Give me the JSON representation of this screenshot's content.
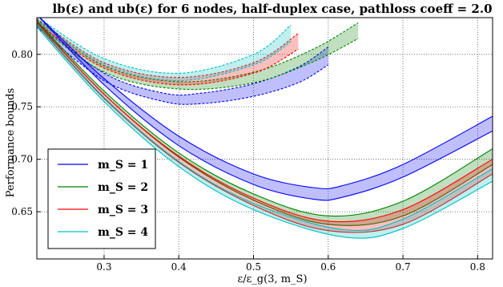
{
  "chart_data": {
    "type": "line",
    "title": "lb(ε) and ub(ε) for 6 nodes, half-duplex case, pathloss coeff = 2.0",
    "xlabel": "ε/ε_g(3, m_S)",
    "ylabel": "Performance bounds",
    "xlim": [
      0.21,
      0.82
    ],
    "ylim": [
      0.605,
      0.835
    ],
    "xticks": [
      "0.3",
      "0.4",
      "0.5",
      "0.6",
      "0.7",
      "0.8"
    ],
    "yticks": [
      "0.65",
      "0.70",
      "0.75",
      "0.80"
    ],
    "grid": true,
    "legend_placement": "lower-left",
    "series": [
      {
        "name": "m_S = 1",
        "color": "#0000ff",
        "lower": {
          "x": [
            0.21,
            0.3,
            0.4,
            0.5,
            0.58,
            0.62,
            0.7,
            0.82
          ],
          "y": [
            0.838,
            0.771,
            0.713,
            0.676,
            0.662,
            0.664,
            0.683,
            0.727
          ]
        },
        "upper": {
          "x": [
            0.21,
            0.3,
            0.4,
            0.5,
            0.58,
            0.62,
            0.7,
            0.82
          ],
          "y": [
            0.838,
            0.777,
            0.722,
            0.686,
            0.673,
            0.675,
            0.695,
            0.741
          ]
        },
        "dashed_lower": {
          "x": [
            0.21,
            0.3,
            0.38,
            0.43,
            0.5,
            0.56,
            0.6
          ],
          "y": [
            0.826,
            0.775,
            0.755,
            0.753,
            0.76,
            0.773,
            0.79
          ]
        },
        "dashed_upper": {
          "x": [
            0.21,
            0.3,
            0.38,
            0.43,
            0.5,
            0.56,
            0.6
          ],
          "y": [
            0.831,
            0.782,
            0.763,
            0.763,
            0.772,
            0.788,
            0.807
          ]
        }
      },
      {
        "name": "m_S = 2",
        "color": "#008000",
        "lower": {
          "x": [
            0.21,
            0.3,
            0.4,
            0.5,
            0.6,
            0.7,
            0.82
          ],
          "y": [
            0.83,
            0.762,
            0.702,
            0.661,
            0.638,
            0.646,
            0.695
          ]
        },
        "upper": {
          "x": [
            0.21,
            0.3,
            0.4,
            0.5,
            0.6,
            0.7,
            0.82
          ],
          "y": [
            0.832,
            0.765,
            0.706,
            0.667,
            0.646,
            0.66,
            0.71
          ]
        },
        "dashed_lower": {
          "x": [
            0.21,
            0.3,
            0.4,
            0.5,
            0.58,
            0.64
          ],
          "y": [
            0.829,
            0.783,
            0.767,
            0.773,
            0.793,
            0.815
          ]
        },
        "dashed_upper": {
          "x": [
            0.21,
            0.3,
            0.4,
            0.5,
            0.58,
            0.64
          ],
          "y": [
            0.833,
            0.789,
            0.774,
            0.783,
            0.805,
            0.83
          ]
        }
      },
      {
        "name": "m_S = 3",
        "color": "#ff0000",
        "lower": {
          "x": [
            0.21,
            0.3,
            0.4,
            0.5,
            0.6,
            0.7,
            0.82
          ],
          "y": [
            0.828,
            0.758,
            0.697,
            0.656,
            0.632,
            0.638,
            0.686
          ]
        },
        "upper": {
          "x": [
            0.21,
            0.3,
            0.4,
            0.5,
            0.6,
            0.7,
            0.82
          ],
          "y": [
            0.831,
            0.762,
            0.703,
            0.663,
            0.641,
            0.652,
            0.7
          ]
        },
        "dashed_lower": {
          "x": [
            0.21,
            0.3,
            0.4,
            0.5,
            0.56
          ],
          "y": [
            0.83,
            0.787,
            0.771,
            0.782,
            0.805
          ]
        },
        "dashed_upper": {
          "x": [
            0.21,
            0.3,
            0.4,
            0.5,
            0.56
          ],
          "y": [
            0.834,
            0.792,
            0.778,
            0.792,
            0.82
          ]
        }
      },
      {
        "name": "m_S = 4",
        "color": "#00bfbf",
        "lower": {
          "x": [
            0.21,
            0.3,
            0.4,
            0.5,
            0.62,
            0.7,
            0.82
          ],
          "y": [
            0.826,
            0.755,
            0.693,
            0.652,
            0.626,
            0.634,
            0.679
          ]
        },
        "upper": {
          "x": [
            0.21,
            0.3,
            0.4,
            0.5,
            0.62,
            0.7,
            0.82
          ],
          "y": [
            0.829,
            0.759,
            0.698,
            0.658,
            0.633,
            0.643,
            0.691
          ]
        },
        "dashed_lower": {
          "x": [
            0.21,
            0.3,
            0.4,
            0.5,
            0.55
          ],
          "y": [
            0.832,
            0.79,
            0.775,
            0.79,
            0.812
          ]
        },
        "dashed_upper": {
          "x": [
            0.21,
            0.3,
            0.4,
            0.5,
            0.55
          ],
          "y": [
            0.836,
            0.796,
            0.782,
            0.8,
            0.828
          ]
        }
      }
    ]
  }
}
